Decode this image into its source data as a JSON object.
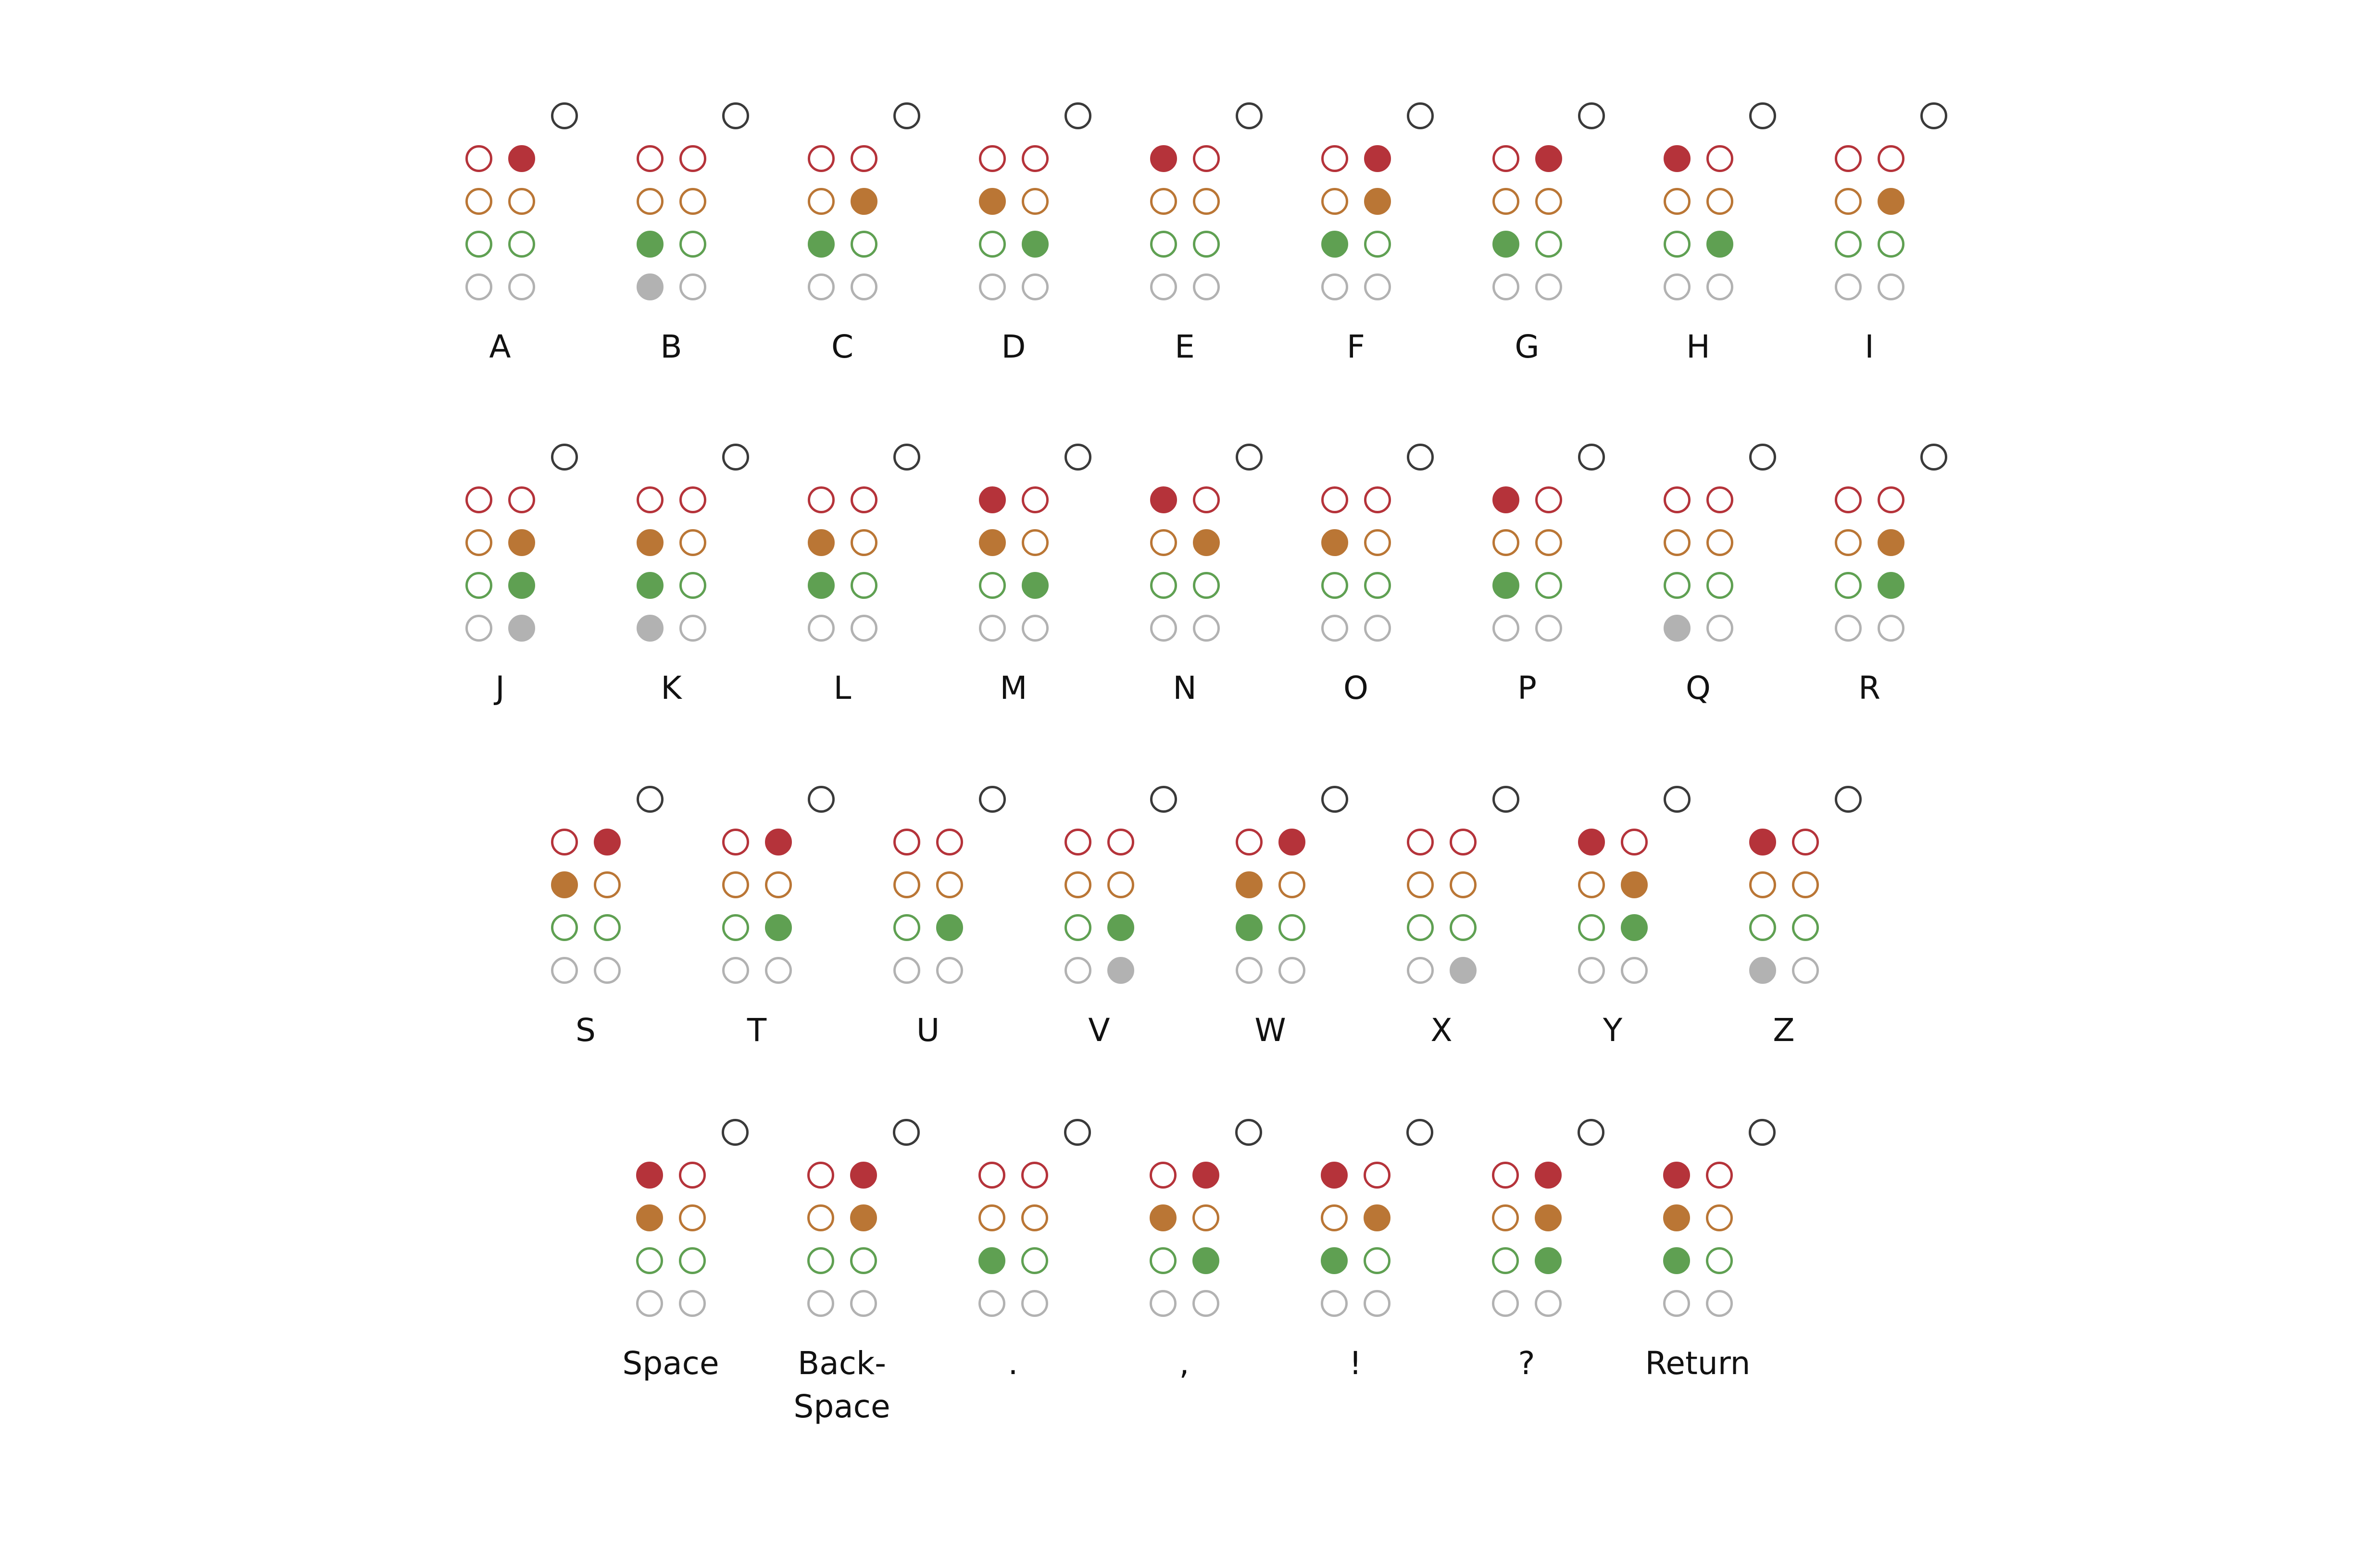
{
  "colors": {
    "row1": "#b5333a",
    "row2": "#ba7635",
    "row3": "#5fa052",
    "row4": "#b2b2b2",
    "extra": "#3a3a3a"
  },
  "rows": [
    [
      {
        "label": "A",
        "on": [
          0,
          1,
          0,
          0,
          0,
          0,
          0,
          0
        ]
      },
      {
        "label": "B",
        "on": [
          0,
          0,
          0,
          0,
          1,
          0,
          1,
          0
        ]
      },
      {
        "label": "C",
        "on": [
          0,
          0,
          0,
          1,
          1,
          0,
          0,
          0
        ]
      },
      {
        "label": "D",
        "on": [
          0,
          0,
          1,
          0,
          0,
          1,
          0,
          0
        ]
      },
      {
        "label": "E",
        "on": [
          1,
          0,
          0,
          0,
          0,
          0,
          0,
          0
        ]
      },
      {
        "label": "F",
        "on": [
          0,
          1,
          0,
          1,
          1,
          0,
          0,
          0
        ]
      },
      {
        "label": "G",
        "on": [
          0,
          1,
          0,
          0,
          1,
          0,
          0,
          0
        ]
      },
      {
        "label": "H",
        "on": [
          1,
          0,
          0,
          0,
          0,
          1,
          0,
          0
        ]
      },
      {
        "label": "I",
        "on": [
          0,
          0,
          0,
          1,
          0,
          0,
          0,
          0
        ]
      }
    ],
    [
      {
        "label": "J",
        "on": [
          0,
          0,
          0,
          1,
          0,
          1,
          0,
          1
        ]
      },
      {
        "label": "K",
        "on": [
          0,
          0,
          1,
          0,
          1,
          0,
          1,
          0
        ]
      },
      {
        "label": "L",
        "on": [
          0,
          0,
          1,
          0,
          1,
          0,
          0,
          0
        ]
      },
      {
        "label": "M",
        "on": [
          1,
          0,
          1,
          0,
          0,
          1,
          0,
          0
        ]
      },
      {
        "label": "N",
        "on": [
          1,
          0,
          0,
          1,
          0,
          0,
          0,
          0
        ]
      },
      {
        "label": "O",
        "on": [
          0,
          0,
          1,
          0,
          0,
          0,
          0,
          0
        ]
      },
      {
        "label": "P",
        "on": [
          1,
          0,
          0,
          0,
          1,
          0,
          0,
          0
        ]
      },
      {
        "label": "Q",
        "on": [
          0,
          0,
          0,
          0,
          0,
          0,
          1,
          0
        ]
      },
      {
        "label": "R",
        "on": [
          0,
          0,
          0,
          1,
          0,
          1,
          0,
          0
        ]
      }
    ],
    [
      {
        "label": "S",
        "on": [
          0,
          1,
          1,
          0,
          0,
          0,
          0,
          0
        ]
      },
      {
        "label": "T",
        "on": [
          0,
          1,
          0,
          0,
          0,
          1,
          0,
          0
        ]
      },
      {
        "label": "U",
        "on": [
          0,
          0,
          0,
          0,
          0,
          1,
          0,
          0
        ]
      },
      {
        "label": "V",
        "on": [
          0,
          0,
          0,
          0,
          0,
          1,
          0,
          1
        ]
      },
      {
        "label": "W",
        "on": [
          0,
          1,
          1,
          0,
          1,
          0,
          0,
          0
        ]
      },
      {
        "label": "X",
        "on": [
          0,
          0,
          0,
          0,
          0,
          0,
          0,
          1
        ]
      },
      {
        "label": "Y",
        "on": [
          1,
          0,
          0,
          1,
          0,
          1,
          0,
          0
        ]
      },
      {
        "label": "Z",
        "on": [
          1,
          0,
          0,
          0,
          0,
          0,
          1,
          0
        ]
      }
    ],
    [
      {
        "label": "Space",
        "on": [
          1,
          0,
          1,
          0,
          0,
          0,
          0,
          0
        ]
      },
      {
        "label": "Back-\nSpace",
        "on": [
          0,
          1,
          0,
          1,
          0,
          0,
          0,
          0
        ]
      },
      {
        "label": ".",
        "on": [
          0,
          0,
          0,
          0,
          1,
          0,
          0,
          0
        ]
      },
      {
        "label": ",",
        "on": [
          0,
          1,
          1,
          0,
          0,
          1,
          0,
          0
        ]
      },
      {
        "label": "!",
        "on": [
          1,
          0,
          0,
          1,
          1,
          0,
          0,
          0
        ]
      },
      {
        "label": "?",
        "on": [
          0,
          1,
          0,
          1,
          0,
          1,
          0,
          0
        ]
      },
      {
        "label": "Return",
        "on": [
          1,
          0,
          1,
          0,
          1,
          0,
          0,
          0
        ]
      }
    ]
  ]
}
